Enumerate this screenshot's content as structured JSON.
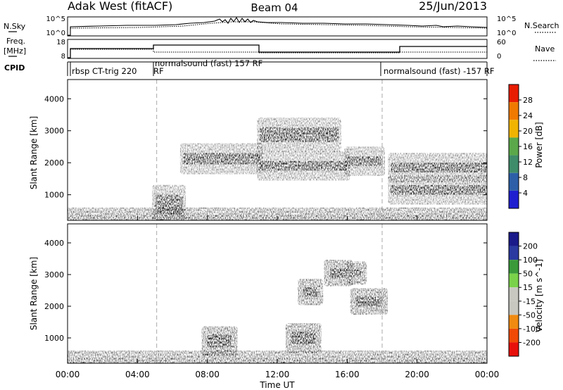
{
  "header": {
    "title_left": "Adak West (fitACF)",
    "title_center": "Beam 04",
    "title_right": "25/Jun/2013"
  },
  "left_labels": {
    "nsky": "N.Sky",
    "freq_line1": "Freq.",
    "freq_line2": "[MHz]",
    "cpid": "CPID"
  },
  "right_labels": {
    "nsearch": "N.Search",
    "nave": "Nave"
  },
  "noise_panel": {
    "left_ticks": [
      "10^5",
      "10^0"
    ],
    "right_ticks": [
      "10^5",
      "10^0"
    ]
  },
  "freq_panel": {
    "left_ticks": [
      "18",
      "8"
    ],
    "right_ticks": [
      "60",
      "0"
    ]
  },
  "cpid_panel": {
    "segments": [
      {
        "label": "rbsp CT-trig 220",
        "rf": "RF",
        "start_hour": 0.6
      },
      {
        "label": "normalsound (fast) 157 RF",
        "rf": "",
        "start_hour": 5.1
      },
      {
        "label": "normalsound (fast) -157 RF",
        "rf": "",
        "start_hour": 18.0
      }
    ]
  },
  "power_panel": {
    "ylabel": "Slant Range [km]",
    "colorbar_label": "Power [dB]",
    "colorbar_ticks": [
      "4",
      "8",
      "12",
      "16",
      "20",
      "24",
      "28"
    ],
    "colorbar_colors": [
      "#1f1fd0",
      "#2c5fa8",
      "#3f8c6a",
      "#5aa84a",
      "#f0b400",
      "#f07a00",
      "#e81c00"
    ]
  },
  "velocity_panel": {
    "ylabel": "Slant Range [km]",
    "colorbar_label": "Velocity [m s^-1]",
    "colorbar_ticks": [
      "-200",
      "-100",
      "-50",
      "-15",
      "15",
      "50",
      "100",
      "200"
    ],
    "colorbar_colors": [
      "#e8100a",
      "#f04a06",
      "#f08a10",
      "#c8c8c0",
      "#c8c8c0",
      "#7ad24a",
      "#3a9a3a",
      "#2a3aa0",
      "#1a1a8a"
    ]
  },
  "x_axis": {
    "label": "Time UT",
    "ticks": [
      "00:00",
      "04:00",
      "08:00",
      "12:00",
      "16:00",
      "20:00",
      "00:00"
    ]
  },
  "chart_data": {
    "type": "heatmap",
    "title": "Adak West (fitACF)",
    "subtitle": "Beam 04",
    "date": "25/Jun/2013",
    "xlabel": "Time UT",
    "ylabel": "Slant Range [km]",
    "x_range_hours": [
      0,
      24
    ],
    "y_range_km": [
      200,
      4600
    ],
    "y_ticks_km": [
      1000,
      2000,
      3000,
      4000
    ],
    "mode_change_hours": [
      5.1,
      18.0
    ],
    "power_features": [
      {
        "t": [
          5.0,
          6.6
        ],
        "r": [
          400,
          1000
        ],
        "value_db": 28
      },
      {
        "t": [
          6.6,
          11.0
        ],
        "r": [
          1950,
          2300
        ],
        "value_db": 24
      },
      {
        "t": [
          11.0,
          16.0
        ],
        "r": [
          1750,
          2050
        ],
        "value_db": 22
      },
      {
        "t": [
          16.0,
          18.0
        ],
        "r": [
          1900,
          2200
        ],
        "value_db": 22
      },
      {
        "t": [
          18.5,
          24.0
        ],
        "r": [
          1700,
          2000
        ],
        "value_db": 20
      },
      {
        "t": [
          11.0,
          15.5
        ],
        "r": [
          2650,
          3100
        ],
        "value_db": 12
      },
      {
        "t": [
          18.5,
          24.0
        ],
        "r": [
          1000,
          1300
        ],
        "value_db": 10
      }
    ],
    "velocity_features": [
      {
        "t": [
          8.0,
          9.4
        ],
        "r": [
          700,
          1100
        ],
        "value_ms": -60
      },
      {
        "t": [
          13.5,
          14.3
        ],
        "r": [
          2300,
          2600
        ],
        "value_ms": -70
      },
      {
        "t": [
          12.8,
          14.2
        ],
        "r": [
          800,
          1200
        ],
        "value_ms": -60
      },
      {
        "t": [
          15.0,
          16.0
        ],
        "r": [
          2900,
          3200
        ],
        "value_ms": -60
      },
      {
        "t": [
          16.3,
          16.8
        ],
        "r": [
          2950,
          3150
        ],
        "value_ms": 40
      },
      {
        "t": [
          16.5,
          18.0
        ],
        "r": [
          2000,
          2300
        ],
        "value_ms": 40
      }
    ],
    "grid": false,
    "legend": "colorbars right"
  }
}
